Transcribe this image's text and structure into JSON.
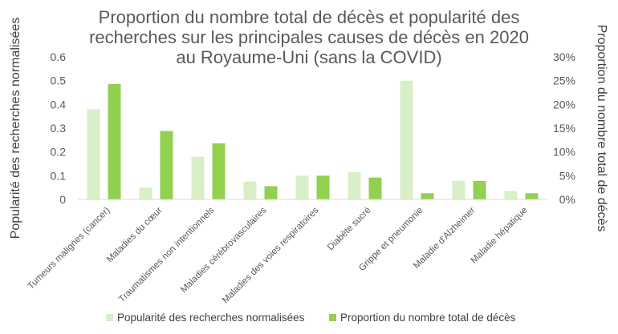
{
  "chart_data": {
    "type": "bar",
    "title_lines": [
      "Proportion du nombre total de décès et popularité des",
      "recherches sur les principales causes de décès en 2020",
      "au Royaume-Uni (sans la COVID)"
    ],
    "categories": [
      "Tumeurs malignes (cancer)",
      "Maladies du cœur",
      "Traumatismes non intentionnels",
      "Maladies cérébrovasculaires",
      "Maladies des voies respiratoires",
      "Diabète sucré",
      "Grippe et pneumonie",
      "Maladie d'Alzheimer",
      "Maladie hépatique"
    ],
    "series": [
      {
        "name": "Popularité des recherches normalisées",
        "axis": "left",
        "color": "#d9efc8",
        "values": [
          0.38,
          0.05,
          0.18,
          0.075,
          0.1,
          0.115,
          0.5,
          0.078,
          0.035
        ]
      },
      {
        "name": "Proportion du nombre total de décès",
        "axis": "right",
        "color": "#92d050",
        "values": [
          24.3,
          14.4,
          11.8,
          2.8,
          5.0,
          4.6,
          1.3,
          3.9,
          1.3
        ]
      }
    ],
    "ylabel_left": "Popularité des recherches normalisées",
    "ylabel_right": "Proportion du nombre total de décès",
    "ylim_left": [
      0,
      0.6
    ],
    "ylim_right": [
      0,
      30
    ],
    "yticks_left": [
      "0",
      "0.1",
      "0.2",
      "0.3",
      "0.4",
      "0.5",
      "0.6"
    ],
    "yticks_right": [
      "0%",
      "5%",
      "10%",
      "15%",
      "20%",
      "25%",
      "30%"
    ],
    "grid": false,
    "legend_position": "bottom"
  }
}
